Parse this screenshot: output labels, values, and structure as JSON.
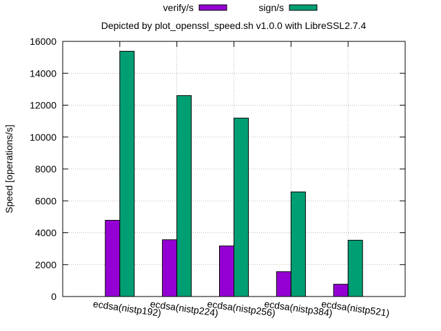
{
  "chart_data": {
    "type": "bar",
    "title": "Depicted by plot_openssl_speed.sh v1.0.0 with LibreSSL2.7.4",
    "ylabel": "Speed [operations/s]",
    "xlabel": "",
    "ylim": [
      0,
      16000
    ],
    "yticks": [
      0,
      2000,
      4000,
      6000,
      8000,
      10000,
      12000,
      14000,
      16000
    ],
    "categories": [
      "ecdsa(nistp192)",
      "ecdsa(nistp224)",
      "ecdsa(nistp256)",
      "ecdsa(nistp384)",
      "ecdsa(nistp521)"
    ],
    "series": [
      {
        "name": "verify/s",
        "color": "#9400d3",
        "values": [
          4780,
          3560,
          3170,
          1560,
          770
        ]
      },
      {
        "name": "sign/s",
        "color": "#009e73",
        "values": [
          15380,
          12600,
          11190,
          6560,
          3530
        ]
      }
    ],
    "grid": true,
    "legend_position": "top-center"
  }
}
